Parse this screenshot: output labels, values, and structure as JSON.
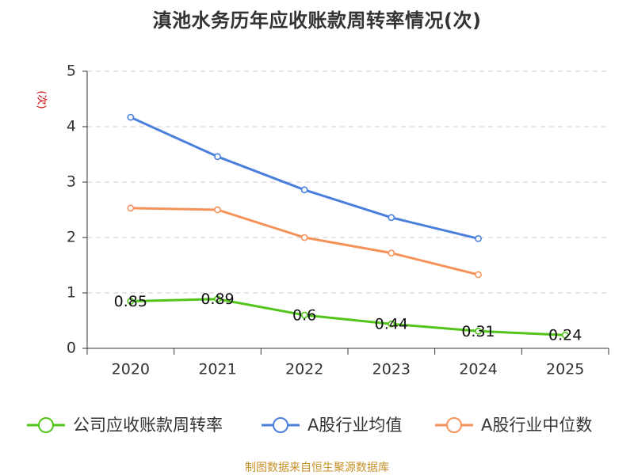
{
  "chart_data": {
    "type": "line",
    "title": "滇池水务历年应收账款周转率情况(次)",
    "ylabel": "(次)",
    "xlabel": "",
    "categories": [
      "2020",
      "2021",
      "2022",
      "2023",
      "2024",
      "2025"
    ],
    "ylim": [
      0,
      5
    ],
    "yticks": [
      "0",
      "1",
      "2",
      "3",
      "4",
      "5"
    ],
    "grid": true,
    "legend_position": "bottom",
    "series": [
      {
        "name": "公司应收账款周转率",
        "color": "#52c41a",
        "values": [
          0.85,
          0.89,
          0.6,
          0.44,
          0.31,
          0.24
        ],
        "labels": [
          "0.85",
          "0.89",
          "0.6",
          "0.44",
          "0.31",
          "0.24"
        ],
        "show_labels": true
      },
      {
        "name": "A股行业均值",
        "color": "#4a7fdb",
        "values": [
          4.17,
          3.46,
          2.86,
          2.36,
          1.98,
          null
        ],
        "show_labels": false
      },
      {
        "name": "A股行业中位数",
        "color": "#f5925a",
        "values": [
          2.53,
          2.5,
          2.0,
          1.72,
          1.33,
          null
        ],
        "show_labels": false
      }
    ]
  },
  "source": {
    "text": "制图数据来自恒生聚源数据库",
    "color": "#c8922a"
  },
  "colors": {
    "title": "#333333",
    "ylabel": "#cc0000",
    "axis": "#333333",
    "grid": "#cccccc"
  }
}
